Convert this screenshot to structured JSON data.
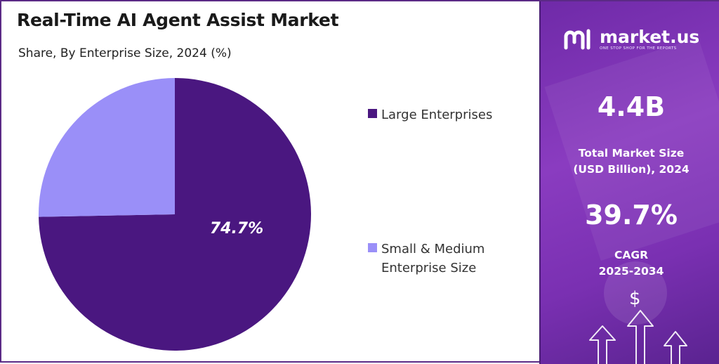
{
  "left_panel": {
    "title": "Real-Time AI Agent Assist Market",
    "subtitle": "Share, By Enterprise Size, 2024 (%)"
  },
  "chart_data": {
    "type": "pie",
    "title": "Real-Time AI Agent Assist Market",
    "subtitle": "Share, By Enterprise Size, 2024 (%)",
    "categories": [
      "Large Enterprises",
      "Small & Medium Enterprise Size"
    ],
    "values": [
      74.7,
      25.3
    ],
    "colors": [
      "#4a1780",
      "#9a8ff8"
    ],
    "data_labels": [
      "74.7%",
      ""
    ],
    "legend_position": "right"
  },
  "legend": {
    "items": [
      {
        "label": "Large Enterprises",
        "color": "#4a1780"
      },
      {
        "label": "Small & Medium Enterprise Size",
        "color": "#9a8ff8"
      }
    ]
  },
  "right_panel": {
    "brand_name": "market.us",
    "brand_tagline": "ONE STOP SHOP FOR THE REPORTS",
    "market_size_value": "4.4B",
    "market_size_label_line1": "Total Market Size",
    "market_size_label_line2": "(USD Billion), 2024",
    "cagr_value": "39.7%",
    "cagr_label_line1": "CAGR",
    "cagr_label_line2": "2025-2034",
    "dollar_symbol": "$",
    "icons": [
      "market-us-logo-icon",
      "dollar-icon",
      "up-arrow-icon"
    ]
  }
}
